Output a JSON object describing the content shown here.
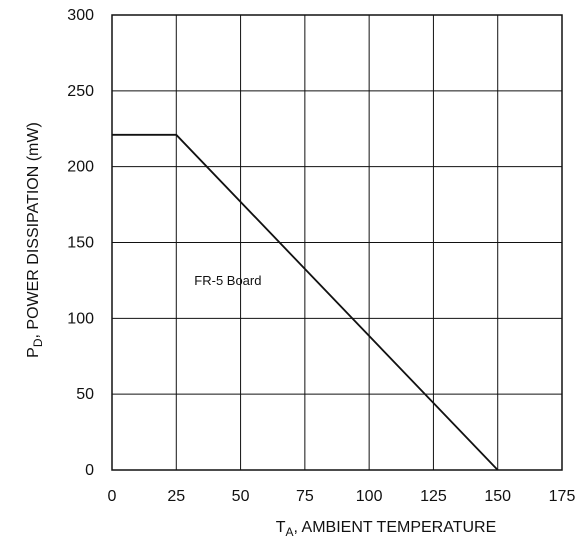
{
  "chart_data": {
    "type": "line",
    "title": "",
    "xlabel": {
      "main": "T",
      "subscript": "A",
      "suffix": ", AMBIENT TEMPERATURE"
    },
    "ylabel": {
      "main": "P",
      "subscript": "D",
      "suffix": ", POWER DISSIPATION (mW)"
    },
    "xlim": [
      0,
      175
    ],
    "ylim": [
      0,
      300
    ],
    "x_ticks": [
      0,
      25,
      50,
      75,
      100,
      125,
      150,
      175
    ],
    "y_ticks": [
      0,
      50,
      100,
      150,
      200,
      250,
      300
    ],
    "x_tick_labels": [
      "0",
      "25",
      "50",
      "75",
      "100",
      "125",
      "150",
      "175"
    ],
    "y_tick_labels": [
      "0",
      "50",
      "100",
      "150",
      "200",
      "250",
      "300"
    ],
    "grid": true,
    "legend": false,
    "series": [
      {
        "x": [
          0,
          25,
          150
        ],
        "y": [
          221,
          221,
          0
        ],
        "color": "#111111"
      }
    ],
    "annotations": [
      {
        "text": "FR-5 Board",
        "x": 32,
        "y": 122
      }
    ]
  }
}
